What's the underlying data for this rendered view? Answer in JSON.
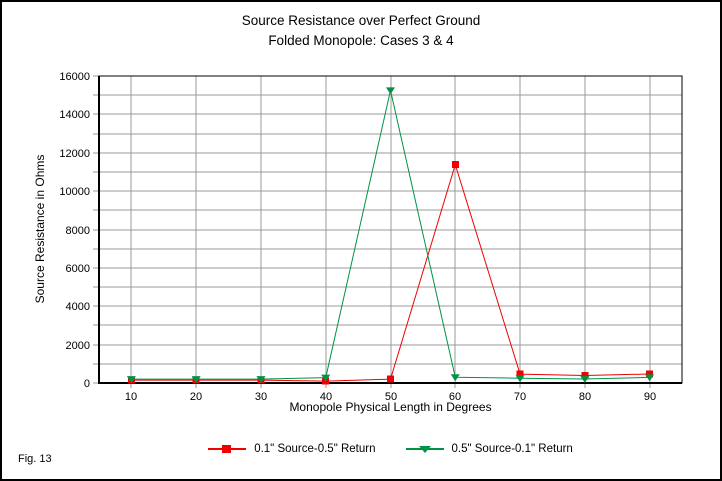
{
  "fig_label": "Fig. 13",
  "chart_data": {
    "type": "line",
    "title": [
      "Source Resistance over Perfect Ground",
      "Folded Monopole: Cases 3 & 4"
    ],
    "xlabel": "Monopole Physical Length in Degrees",
    "ylabel": "Source Resistance in Ohms",
    "x": [
      10,
      20,
      30,
      40,
      50,
      60,
      70,
      80,
      90
    ],
    "series": [
      {
        "name": "0.1\" Source-0.5\" Return",
        "color": "#f00000",
        "marker": "square",
        "values": [
          150,
          150,
          150,
          100,
          200,
          11380,
          460,
          390,
          470
        ]
      },
      {
        "name": "0.5\" Source-0.1\" Return",
        "color": "#009245",
        "marker": "triangle-down",
        "values": [
          200,
          200,
          200,
          280,
          15250,
          300,
          250,
          210,
          290
        ]
      }
    ],
    "ylim": [
      0,
      16000
    ],
    "yticks_labeled": [
      0,
      2000,
      4000,
      6000,
      8000,
      10000,
      12000,
      14000,
      16000
    ],
    "ygrid_step": 1000,
    "grid_color": "#999999",
    "axis_color": "#000000",
    "legend_position": "bottom-center"
  }
}
